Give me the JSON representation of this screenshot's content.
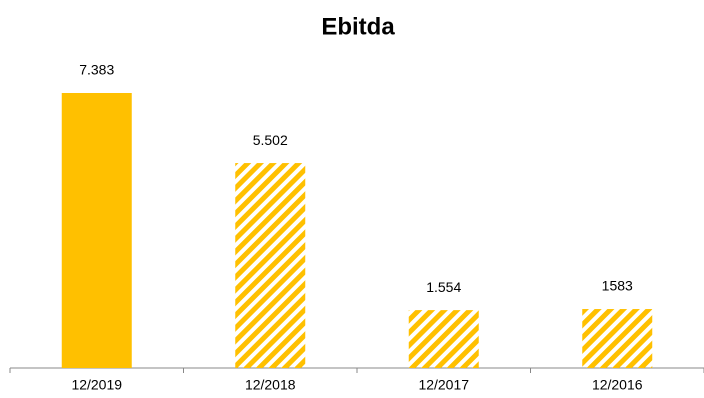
{
  "chart_data": {
    "type": "bar",
    "title": "Ebitda",
    "categories": [
      "12/2019",
      "12/2018",
      "12/2017",
      "12/2016"
    ],
    "values": [
      7383,
      5502,
      1554,
      1583
    ],
    "value_labels": [
      "7.383",
      "5.502",
      "1.554",
      "1583"
    ],
    "color": "#ffc000",
    "hatched": [
      false,
      true,
      true,
      true
    ]
  }
}
